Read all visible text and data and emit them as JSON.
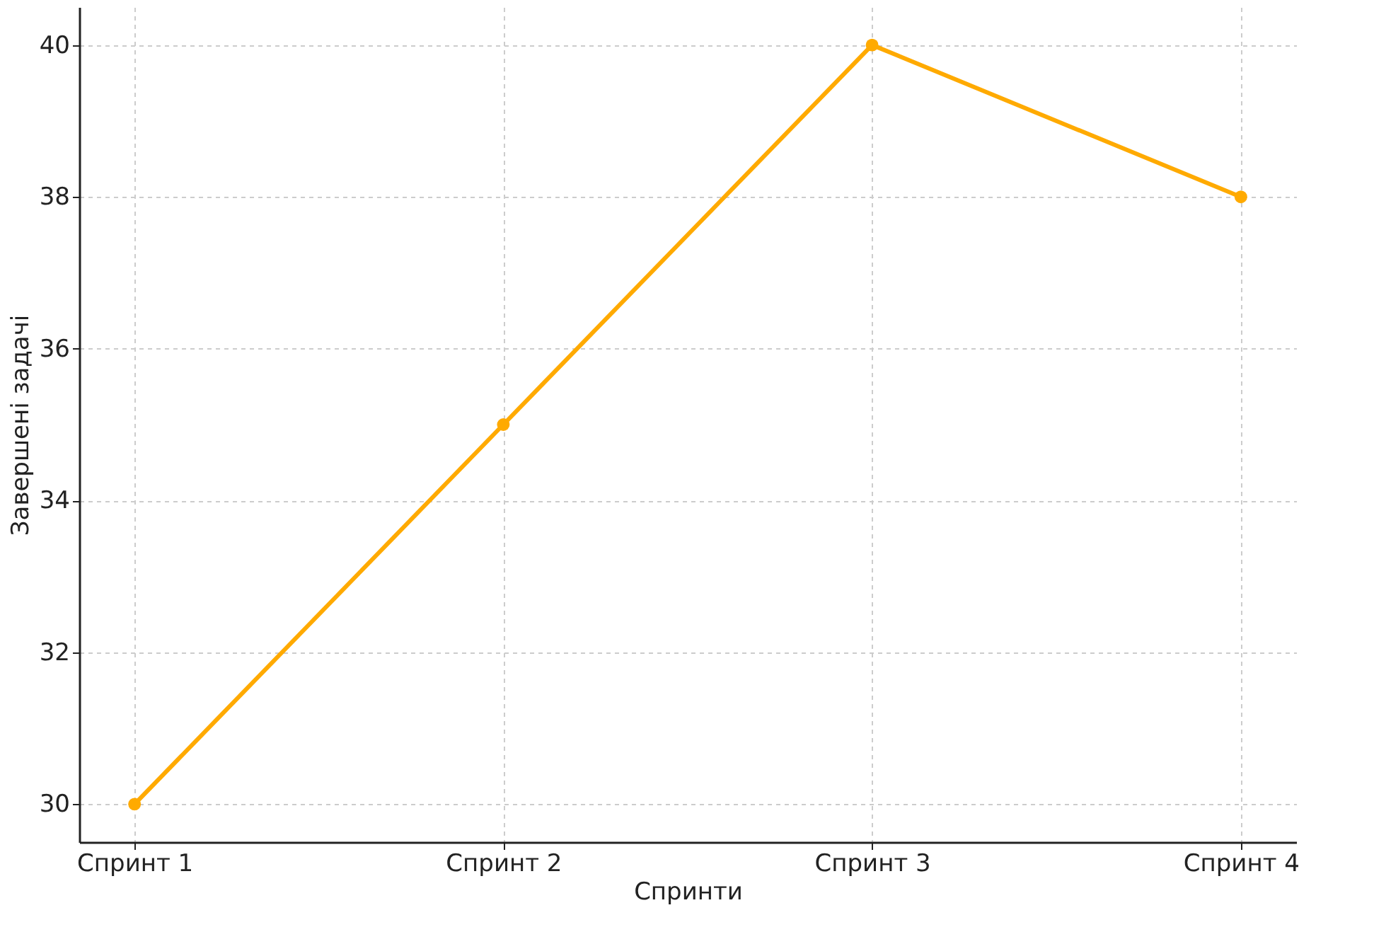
{
  "chart_data": {
    "type": "line",
    "xlabel": "Спринти",
    "ylabel": "Завершені задачі",
    "categories": [
      "Спринт 1",
      "Спринт 2",
      "Спринт 3",
      "Спринт 4"
    ],
    "series": [
      {
        "color": "#ffaa00",
        "values": [
          30,
          35,
          40,
          38
        ]
      }
    ],
    "ylim": [
      29.5,
      40.5
    ],
    "yticks": [
      30,
      32,
      34,
      36,
      38,
      40
    ],
    "grid": true,
    "marker": "circle",
    "line_style": "solid"
  }
}
